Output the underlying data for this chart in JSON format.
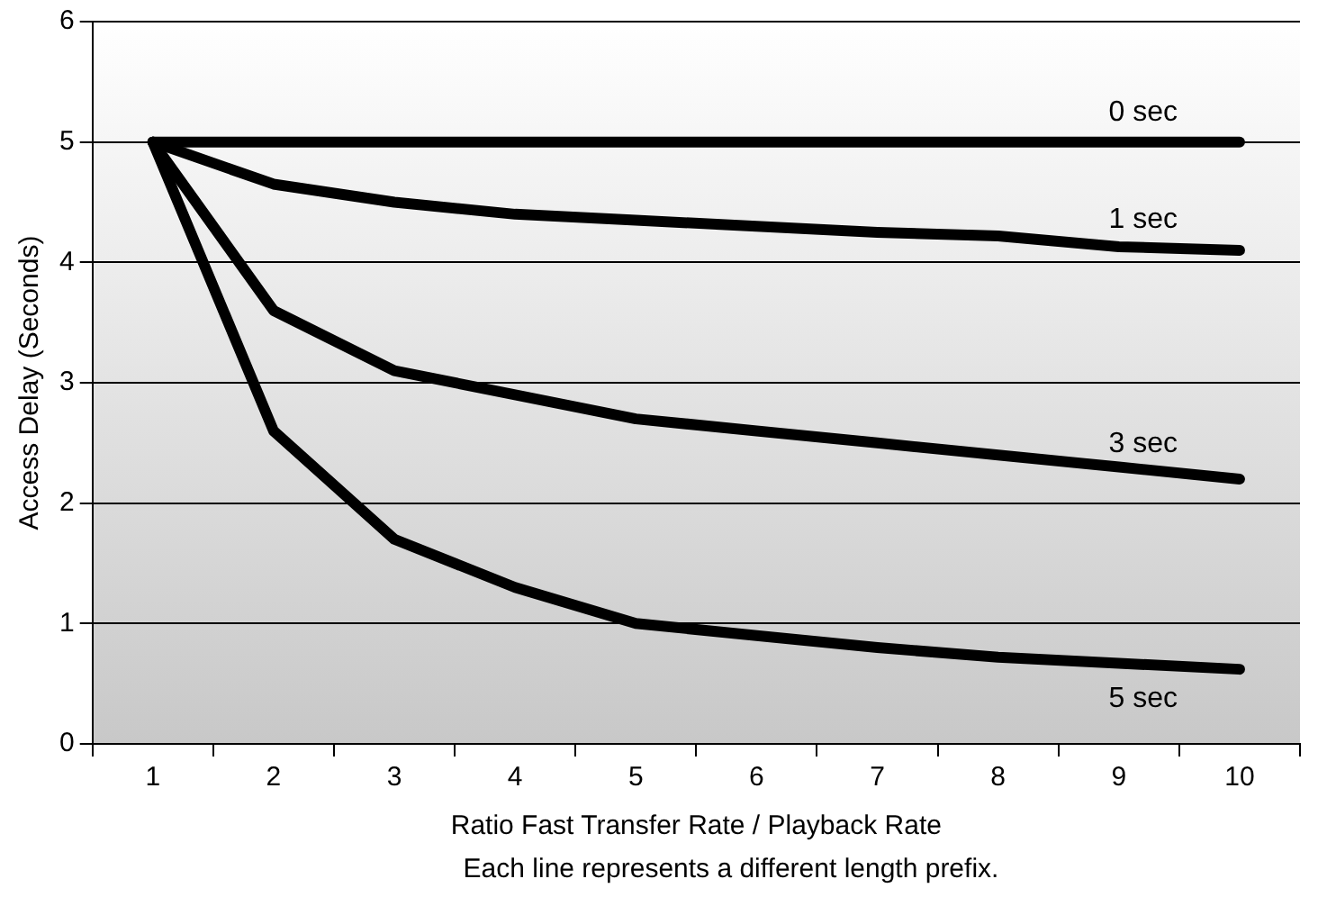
{
  "chart_data": {
    "type": "line",
    "xlabel": "Ratio Fast Transfer Rate / Playback Rate",
    "ylabel": "Access Delay (Seconds)",
    "categories": [
      "1",
      "2",
      "3",
      "4",
      "5",
      "6",
      "7",
      "8",
      "9",
      "10"
    ],
    "series": [
      {
        "name": "0 sec",
        "color": "#000000",
        "values": [
          5,
          5,
          5,
          5,
          5,
          5,
          5,
          5,
          5,
          5
        ]
      },
      {
        "name": "1 sec",
        "color": "#000000",
        "values": [
          5,
          4.65,
          4.5,
          4.4,
          4.35,
          4.3,
          4.25,
          4.22,
          4.13,
          4.1
        ]
      },
      {
        "name": "3 sec",
        "color": "#000000",
        "values": [
          5,
          3.6,
          3.1,
          2.9,
          2.7,
          2.6,
          2.5,
          2.4,
          2.3,
          2.2
        ]
      },
      {
        "name": "5 sec",
        "color": "#000000",
        "values": [
          5,
          2.6,
          1.7,
          1.3,
          1.0,
          0.9,
          0.8,
          0.72,
          0.67,
          0.62
        ]
      }
    ],
    "ylim": [
      0,
      6
    ],
    "yticks": [
      0,
      1,
      2,
      3,
      4,
      5,
      6
    ],
    "grid": "y",
    "legend": false,
    "marker": "none",
    "line_style": "solid",
    "annotations": [
      "Each line represents a different length prefix."
    ]
  }
}
